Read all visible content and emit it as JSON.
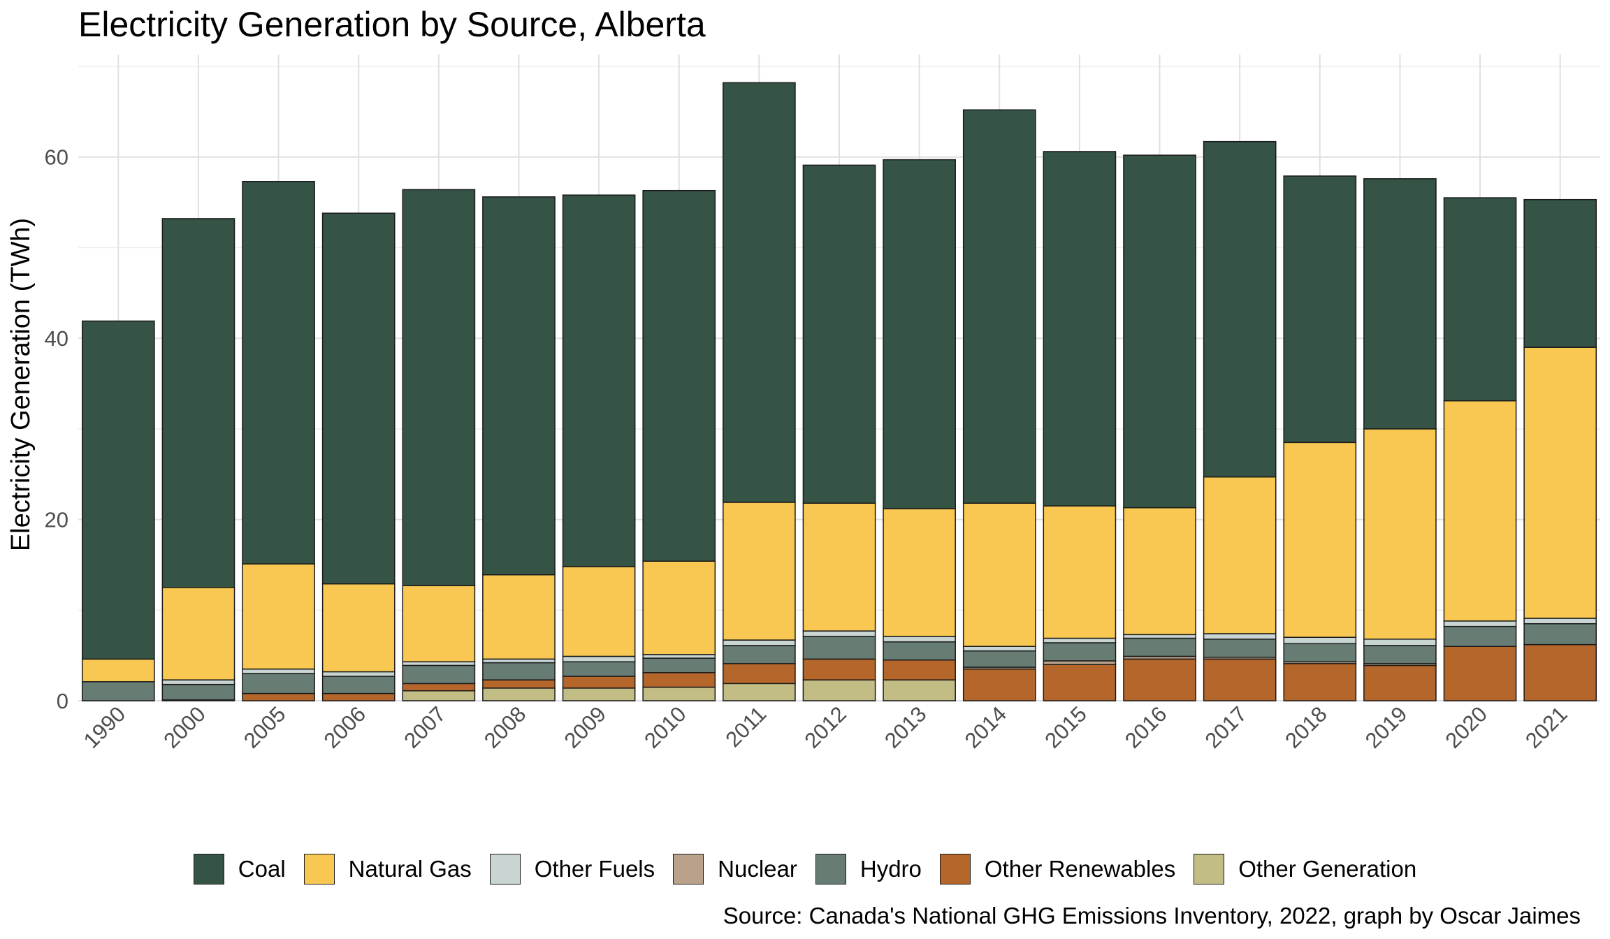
{
  "chart_data": {
    "type": "bar",
    "stacked": true,
    "title": "Electricity Generation by Source, Alberta",
    "ylabel": "Electricity Generation (TWh)",
    "xlabel": "",
    "ylim": [
      0,
      70
    ],
    "yticks": [
      0,
      20,
      40,
      60
    ],
    "grid": true,
    "legend_position": "bottom",
    "source": "Source: Canada's National GHG Emissions Inventory, 2022, graph by Oscar Jaimes",
    "categories": [
      "1990",
      "2000",
      "2005",
      "2006",
      "2007",
      "2008",
      "2009",
      "2010",
      "2011",
      "2012",
      "2013",
      "2014",
      "2015",
      "2016",
      "2017",
      "2018",
      "2019",
      "2020",
      "2021"
    ],
    "series": [
      {
        "name": "Other Generation",
        "color": "#c2bc85",
        "values": [
          0,
          0,
          0,
          0,
          1.1,
          1.4,
          1.4,
          1.5,
          1.9,
          2.3,
          2.3,
          0,
          0,
          0,
          0,
          0,
          0,
          0,
          0
        ]
      },
      {
        "name": "Other Renewables",
        "color": "#b4662b",
        "values": [
          0,
          0.1,
          0.8,
          0.8,
          0.8,
          0.9,
          1.3,
          1.6,
          2.2,
          2.3,
          2.2,
          3.5,
          4.0,
          4.6,
          4.6,
          4.1,
          3.9,
          6.0,
          6.2
        ]
      },
      {
        "name": "Nuclear",
        "color": "#b9a18b",
        "values": [
          0,
          0,
          0,
          0,
          0,
          0,
          0,
          0,
          0,
          0,
          0,
          0.2,
          0.4,
          0.3,
          0.2,
          0.2,
          0.2,
          0,
          0
        ]
      },
      {
        "name": "Hydro",
        "color": "#677c73",
        "values": [
          2.1,
          1.7,
          2.2,
          1.9,
          2.0,
          1.9,
          1.6,
          1.6,
          2.0,
          2.5,
          2.0,
          1.8,
          2.0,
          2.0,
          2.0,
          2.0,
          2.0,
          2.2,
          2.3
        ]
      },
      {
        "name": "Other Fuels",
        "color": "#c9d5d3",
        "values": [
          0,
          0.5,
          0.5,
          0.5,
          0.4,
          0.4,
          0.6,
          0.4,
          0.6,
          0.6,
          0.6,
          0.5,
          0.5,
          0.4,
          0.6,
          0.7,
          0.7,
          0.6,
          0.6
        ]
      },
      {
        "name": "Natural Gas",
        "color": "#f8c852",
        "values": [
          2.5,
          10.2,
          11.6,
          9.7,
          8.4,
          9.3,
          9.9,
          10.3,
          15.2,
          14.1,
          14.1,
          15.8,
          14.6,
          14.0,
          17.3,
          21.5,
          23.2,
          24.3,
          29.9
        ]
      },
      {
        "name": "Coal",
        "color": "#355445",
        "values": [
          37.3,
          40.7,
          42.2,
          40.9,
          43.7,
          41.7,
          41.0,
          40.9,
          46.3,
          37.3,
          38.5,
          43.4,
          39.1,
          38.9,
          37.0,
          29.4,
          27.6,
          22.4,
          16.3
        ]
      }
    ],
    "legend_order": [
      "Coal",
      "Natural Gas",
      "Other Fuels",
      "Nuclear",
      "Hydro",
      "Other Renewables",
      "Other Generation"
    ]
  }
}
